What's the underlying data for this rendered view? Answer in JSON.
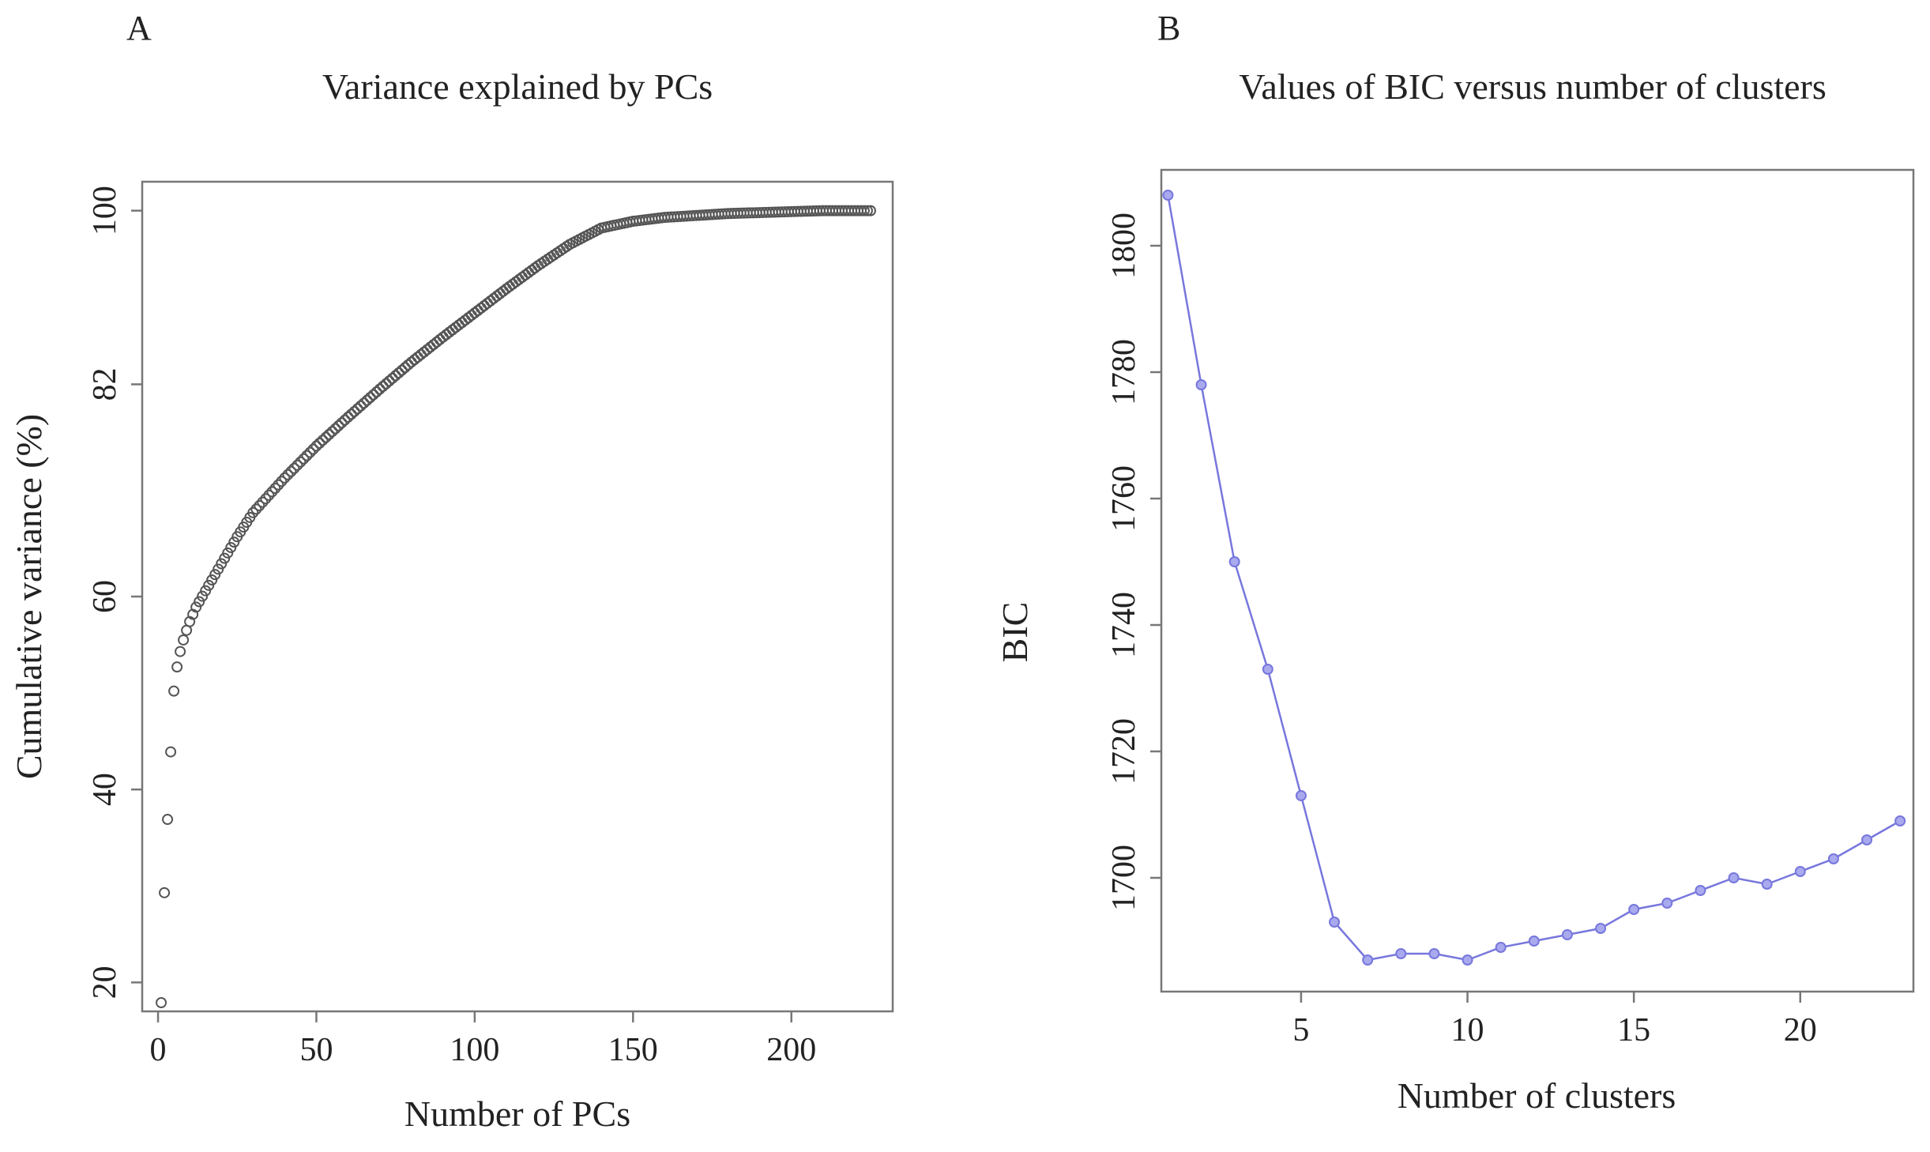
{
  "chart_data": [
    {
      "panel_label": "A",
      "type": "scatter",
      "title": "Variance explained by PCs",
      "xlabel": "Number of PCs",
      "ylabel": "Cumulative variance (%)",
      "xlim": [
        -5,
        232
      ],
      "ylim": [
        17,
        103
      ],
      "xticks": [
        0,
        50,
        100,
        150,
        200
      ],
      "yticks": [
        20,
        40,
        60,
        82,
        100
      ],
      "marker": "open-circle",
      "color": "#555555",
      "series": [
        {
          "name": "Cumulative variance",
          "x": [
            1,
            2,
            3,
            4,
            5,
            6,
            7,
            8,
            9,
            10,
            12,
            15,
            20,
            25,
            30,
            40,
            50,
            60,
            70,
            80,
            90,
            100,
            110,
            120,
            130,
            140,
            150,
            160,
            170,
            180,
            190,
            200,
            210,
            220,
            225
          ],
          "values": [
            17.9,
            29.3,
            36.9,
            43.9,
            50.2,
            52.7,
            54.3,
            55.5,
            56.5,
            57.4,
            58.9,
            60.6,
            63.4,
            66.2,
            68.7,
            72.3,
            75.6,
            78.6,
            81.5,
            84.3,
            86.9,
            89.4,
            91.9,
            94.3,
            96.5,
            98.2,
            98.9,
            99.3,
            99.5,
            99.7,
            99.8,
            99.9,
            100.0,
            100.0,
            100.0
          ]
        }
      ]
    },
    {
      "panel_label": "B",
      "type": "line",
      "title": "Values of BIC versus number of clusters",
      "xlabel": "Number of clusters",
      "ylabel": "BIC",
      "xlim": [
        0.8,
        23.4
      ],
      "ylim": [
        1682,
        1812
      ],
      "xticks": [
        5,
        10,
        15,
        20
      ],
      "yticks": [
        1700,
        1720,
        1740,
        1760,
        1780,
        1800
      ],
      "color": "#7777dd",
      "series": [
        {
          "name": "BIC",
          "x": [
            1,
            2,
            3,
            4,
            5,
            6,
            7,
            8,
            9,
            10,
            11,
            12,
            13,
            14,
            15,
            16,
            17,
            18,
            19,
            20,
            21,
            22,
            23
          ],
          "values": [
            1808,
            1778,
            1750,
            1733,
            1713,
            1693,
            1687,
            1688,
            1688,
            1687,
            1689,
            1690,
            1691,
            1692,
            1695,
            1696,
            1698,
            1700,
            1699,
            1701,
            1703,
            1706,
            1709
          ]
        }
      ]
    }
  ]
}
